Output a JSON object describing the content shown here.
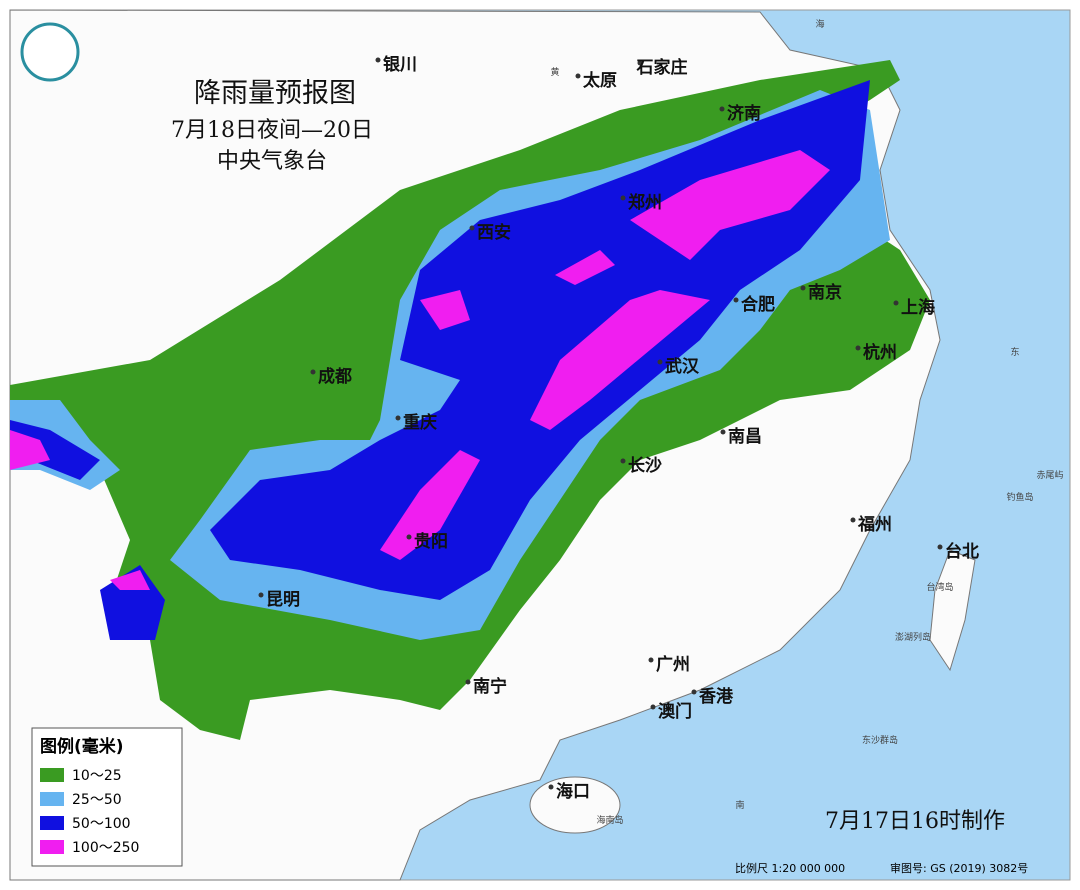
{
  "header": {
    "title": "降雨量预报图",
    "period": "7月18日夜间—20日",
    "issuer": "中央气象台"
  },
  "cities": [
    "银川",
    "太原",
    "石家庄",
    "济南",
    "郑州",
    "西安",
    "南京",
    "合肥",
    "上海",
    "成都",
    "武汉",
    "杭州",
    "重庆",
    "南昌",
    "长沙",
    "福州",
    "台北",
    "贵阳",
    "昆明",
    "广州",
    "香港",
    "澳门",
    "南宁",
    "海口"
  ],
  "small_labels": [
    "黄",
    "海",
    "东",
    "南",
    "台湾岛",
    "海南岛",
    "东沙群岛",
    "钓鱼岛",
    "赤尾屿",
    "澎湖列岛"
  ],
  "legend": {
    "title": "图例(毫米)",
    "items": [
      {
        "label": "10～25",
        "color": "#3a9b22"
      },
      {
        "label": "25～50",
        "color": "#66b4f0"
      },
      {
        "label": "50～100",
        "color": "#1010e0"
      },
      {
        "label": "100～250",
        "color": "#f01ef0"
      }
    ]
  },
  "footer": {
    "made": "7月17日16时制作",
    "scale": "比例尺 1:20 000 000",
    "approval": "审图号: GS (2019) 3082号"
  }
}
